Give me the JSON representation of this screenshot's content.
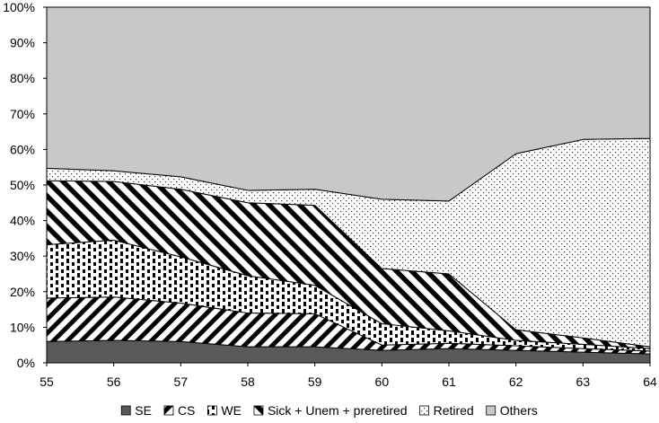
{
  "chart_data": {
    "type": "area",
    "stacked": true,
    "x": [
      55,
      56,
      57,
      58,
      59,
      60,
      61,
      62,
      63,
      64
    ],
    "ylim": [
      0,
      100
    ],
    "yticks": [
      "0%",
      "10%",
      "20%",
      "30%",
      "40%",
      "50%",
      "60%",
      "70%",
      "80%",
      "90%",
      "100%"
    ],
    "xticks": [
      "55",
      "56",
      "57",
      "58",
      "59",
      "60",
      "61",
      "62",
      "63",
      "64"
    ],
    "grid": false,
    "legend_position": "bottom",
    "series": [
      {
        "name": "SE",
        "fill": "solid-dark",
        "color": "#595959",
        "values": [
          6,
          6.3,
          6,
          4.5,
          4.5,
          3.5,
          4,
          3.5,
          3,
          2.5
        ]
      },
      {
        "name": "CS",
        "fill": "diagonal-forward",
        "color": "#000000",
        "values": [
          12.2,
          12.2,
          10.8,
          9.5,
          9.3,
          1.5,
          1.5,
          1.3,
          1,
          0.8
        ]
      },
      {
        "name": "WE",
        "fill": "vertical-dashed",
        "color": "#000000",
        "values": [
          15,
          16,
          13,
          10.5,
          8,
          6,
          3.5,
          1.5,
          1.2,
          0.7
        ]
      },
      {
        "name": "Sick + Unem + preretired",
        "fill": "diagonal-backward",
        "color": "#000000",
        "values": [
          18,
          16.5,
          19,
          20.5,
          22.5,
          15.5,
          16,
          3,
          1.8,
          0.5
        ]
      },
      {
        "name": "Retired",
        "fill": "dots",
        "color": "#000000",
        "values": [
          3.5,
          3,
          3.5,
          3.5,
          4.5,
          19.5,
          20.5,
          49.5,
          55.8,
          58.6
        ]
      },
      {
        "name": "Others",
        "fill": "solid-light",
        "color": "#c8c8c8",
        "values": [
          45.3,
          46,
          47.7,
          51.5,
          51.2,
          54,
          54.5,
          41.2,
          37.2,
          36.9
        ]
      }
    ]
  }
}
